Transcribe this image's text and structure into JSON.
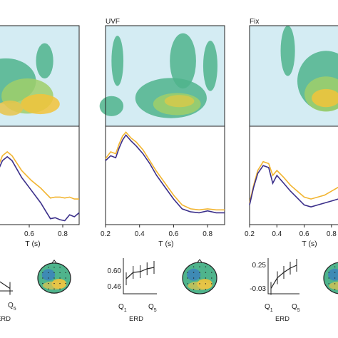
{
  "panels": [
    {
      "title": "",
      "time_axis": {
        "label": "T (s)",
        "ticks": [
          "0.6",
          "0.8"
        ],
        "range": [
          0.0,
          0.9
        ]
      },
      "erd_axis": {
        "label": "ERD",
        "ticks": [],
        "quantile_labels": [
          "Q",
          "5"
        ]
      },
      "lines": {
        "orange": [
          [
            0.0,
            0.55
          ],
          [
            0.05,
            0.42
          ],
          [
            0.1,
            0.3
          ],
          [
            0.15,
            0.26
          ],
          [
            0.2,
            0.3
          ],
          [
            0.3,
            0.45
          ],
          [
            0.4,
            0.55
          ],
          [
            0.5,
            0.63
          ],
          [
            0.55,
            0.68
          ],
          [
            0.6,
            0.73
          ],
          [
            0.65,
            0.72
          ],
          [
            0.7,
            0.72
          ],
          [
            0.75,
            0.73
          ],
          [
            0.8,
            0.72
          ],
          [
            0.85,
            0.74
          ],
          [
            0.9,
            0.74
          ]
        ],
        "blue": [
          [
            0.0,
            0.58
          ],
          [
            0.05,
            0.46
          ],
          [
            0.1,
            0.35
          ],
          [
            0.15,
            0.31
          ],
          [
            0.2,
            0.35
          ],
          [
            0.3,
            0.52
          ],
          [
            0.4,
            0.65
          ],
          [
            0.5,
            0.78
          ],
          [
            0.55,
            0.86
          ],
          [
            0.6,
            0.94
          ],
          [
            0.65,
            0.93
          ],
          [
            0.7,
            0.95
          ],
          [
            0.75,
            0.96
          ],
          [
            0.8,
            0.9
          ],
          [
            0.85,
            0.92
          ],
          [
            0.9,
            0.88
          ]
        ]
      },
      "erd_points": [
        0.35,
        0.15
      ],
      "topo": "partial"
    },
    {
      "title": "UVF",
      "time_axis": {
        "label": "T (s)",
        "ticks": [
          "0.2",
          "0.4",
          "0.6",
          "0.8"
        ],
        "range": [
          0.2,
          0.9
        ]
      },
      "erd_axis": {
        "label": "ERD",
        "ticks": [
          "0.60",
          "0.46"
        ],
        "quantile_labels": [
          "Q1",
          "Q5"
        ]
      },
      "lines": {
        "orange": [
          [
            0.2,
            0.33
          ],
          [
            0.23,
            0.26
          ],
          [
            0.26,
            0.28
          ],
          [
            0.28,
            0.18
          ],
          [
            0.3,
            0.1
          ],
          [
            0.32,
            0.06
          ],
          [
            0.35,
            0.12
          ],
          [
            0.38,
            0.16
          ],
          [
            0.42,
            0.24
          ],
          [
            0.46,
            0.35
          ],
          [
            0.5,
            0.46
          ],
          [
            0.55,
            0.58
          ],
          [
            0.6,
            0.7
          ],
          [
            0.65,
            0.8
          ],
          [
            0.7,
            0.84
          ],
          [
            0.75,
            0.85
          ],
          [
            0.8,
            0.84
          ],
          [
            0.85,
            0.85
          ],
          [
            0.9,
            0.85
          ]
        ],
        "blue": [
          [
            0.2,
            0.35
          ],
          [
            0.23,
            0.3
          ],
          [
            0.26,
            0.32
          ],
          [
            0.28,
            0.22
          ],
          [
            0.3,
            0.14
          ],
          [
            0.32,
            0.09
          ],
          [
            0.35,
            0.15
          ],
          [
            0.38,
            0.2
          ],
          [
            0.42,
            0.28
          ],
          [
            0.46,
            0.38
          ],
          [
            0.5,
            0.5
          ],
          [
            0.55,
            0.62
          ],
          [
            0.6,
            0.74
          ],
          [
            0.65,
            0.84
          ],
          [
            0.7,
            0.87
          ],
          [
            0.75,
            0.88
          ],
          [
            0.8,
            0.86
          ],
          [
            0.85,
            0.88
          ],
          [
            0.9,
            0.88
          ]
        ]
      },
      "erd_points": [
        0.42,
        0.6,
        0.62,
        0.7,
        0.74
      ],
      "topo": "full"
    },
    {
      "title": "Fix",
      "time_axis": {
        "label": "T (s)",
        "ticks": [
          "0.2",
          "0.4",
          "0.6",
          "0.8"
        ],
        "range": [
          0.2,
          0.9
        ]
      },
      "erd_axis": {
        "label": "ERD",
        "ticks": [
          "0.25",
          "-0.03"
        ],
        "quantile_labels": [
          "Q1",
          "Q5"
        ]
      },
      "lines": {
        "orange": [
          [
            0.2,
            0.78
          ],
          [
            0.23,
            0.6
          ],
          [
            0.26,
            0.45
          ],
          [
            0.3,
            0.36
          ],
          [
            0.34,
            0.38
          ],
          [
            0.37,
            0.5
          ],
          [
            0.4,
            0.45
          ],
          [
            0.45,
            0.52
          ],
          [
            0.5,
            0.6
          ],
          [
            0.55,
            0.66
          ],
          [
            0.6,
            0.72
          ],
          [
            0.65,
            0.74
          ],
          [
            0.7,
            0.72
          ],
          [
            0.75,
            0.7
          ],
          [
            0.8,
            0.66
          ],
          [
            0.85,
            0.62
          ],
          [
            0.9,
            0.6
          ]
        ],
        "blue": [
          [
            0.2,
            0.8
          ],
          [
            0.23,
            0.62
          ],
          [
            0.26,
            0.48
          ],
          [
            0.3,
            0.4
          ],
          [
            0.34,
            0.42
          ],
          [
            0.37,
            0.58
          ],
          [
            0.4,
            0.5
          ],
          [
            0.45,
            0.58
          ],
          [
            0.5,
            0.66
          ],
          [
            0.55,
            0.73
          ],
          [
            0.6,
            0.8
          ],
          [
            0.65,
            0.82
          ],
          [
            0.7,
            0.8
          ],
          [
            0.75,
            0.78
          ],
          [
            0.8,
            0.76
          ],
          [
            0.85,
            0.74
          ],
          [
            0.9,
            0.72
          ]
        ]
      },
      "erd_points": [
        0.15,
        0.45,
        0.6,
        0.72,
        0.8
      ],
      "topo": "partial"
    }
  ],
  "colors": {
    "orange": "#f2b531",
    "blue": "#3b2f8a",
    "heat_bg": "#d4ecf3",
    "heat_mid": "#4fb48c",
    "heat_high": "#f2c339"
  }
}
